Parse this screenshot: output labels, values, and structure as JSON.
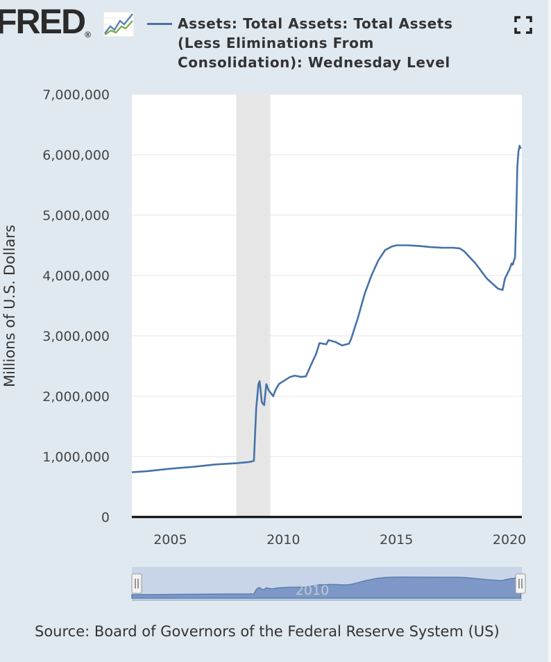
{
  "logo": {
    "text": "FRED",
    "registered": "®"
  },
  "icons": {
    "logo": "graph-icon",
    "fullscreen": "fullscreen-icon"
  },
  "colors": {
    "background": "#e1e9f0",
    "plot_background": "#ffffff",
    "series": "#4572a7",
    "recession_band": "#e6e6e6",
    "navigator_fill": "#c8d5e8",
    "navigator_series": "#7d98c6"
  },
  "source": "Source: Board of Governors of the Federal Reserve System (US)",
  "chart_data": {
    "type": "line",
    "title": "Assets: Total Assets: Total Assets (Less Eliminations From Consolidation): Wednesday Level",
    "ylabel": "Millions of U.S. Dollars",
    "xlabel": "",
    "xlim": [
      2003.3,
      2020.55
    ],
    "ylim": [
      0,
      7000000
    ],
    "x_ticks": [
      2005,
      2010,
      2015,
      2020
    ],
    "x_tick_labels": [
      "2005",
      "2010",
      "2015",
      "2020"
    ],
    "y_ticks": [
      0,
      1000000,
      2000000,
      3000000,
      4000000,
      5000000,
      6000000,
      7000000
    ],
    "y_tick_labels": [
      "0",
      "1,000,000",
      "2,000,000",
      "3,000,000",
      "4,000,000",
      "5,000,000",
      "6,000,000",
      "7,000,000"
    ],
    "grid": true,
    "legend_position": "top",
    "recession_shading": [
      [
        2007.92,
        2009.42
      ]
    ],
    "navigator_label": "2010",
    "series": [
      {
        "name": "Assets: Total Assets: Total Assets (Less Eliminations From Consolidation): Wednesday Level",
        "x": [
          2003.3,
          2004.0,
          2005.0,
          2006.0,
          2007.0,
          2007.9,
          2008.5,
          2008.7,
          2008.8,
          2008.9,
          2008.95,
          2009.05,
          2009.15,
          2009.25,
          2009.35,
          2009.45,
          2009.55,
          2009.65,
          2009.8,
          2010.0,
          2010.3,
          2010.5,
          2010.8,
          2011.0,
          2011.2,
          2011.45,
          2011.6,
          2011.9,
          2012.0,
          2012.3,
          2012.6,
          2012.9,
          2013.0,
          2013.3,
          2013.6,
          2013.9,
          2014.2,
          2014.5,
          2014.8,
          2015.0,
          2015.5,
          2016.0,
          2016.5,
          2017.0,
          2017.5,
          2017.8,
          2018.0,
          2018.5,
          2019.0,
          2019.5,
          2019.7,
          2019.8,
          2020.0,
          2020.1,
          2020.15,
          2020.2,
          2020.25,
          2020.3,
          2020.35,
          2020.4,
          2020.45,
          2020.5
        ],
        "y": [
          740000,
          760000,
          800000,
          830000,
          870000,
          890000,
          910000,
          930000,
          1800000,
          2200000,
          2250000,
          1900000,
          1850000,
          2200000,
          2100000,
          2050000,
          2000000,
          2100000,
          2200000,
          2250000,
          2320000,
          2340000,
          2320000,
          2330000,
          2500000,
          2700000,
          2880000,
          2860000,
          2930000,
          2900000,
          2840000,
          2870000,
          2950000,
          3300000,
          3700000,
          4000000,
          4250000,
          4420000,
          4480000,
          4500000,
          4500000,
          4490000,
          4470000,
          4460000,
          4460000,
          4450000,
          4400000,
          4200000,
          3950000,
          3780000,
          3760000,
          3950000,
          4100000,
          4200000,
          4180000,
          4250000,
          4300000,
          5000000,
          5800000,
          6050000,
          6150000,
          6100000
        ]
      }
    ]
  }
}
